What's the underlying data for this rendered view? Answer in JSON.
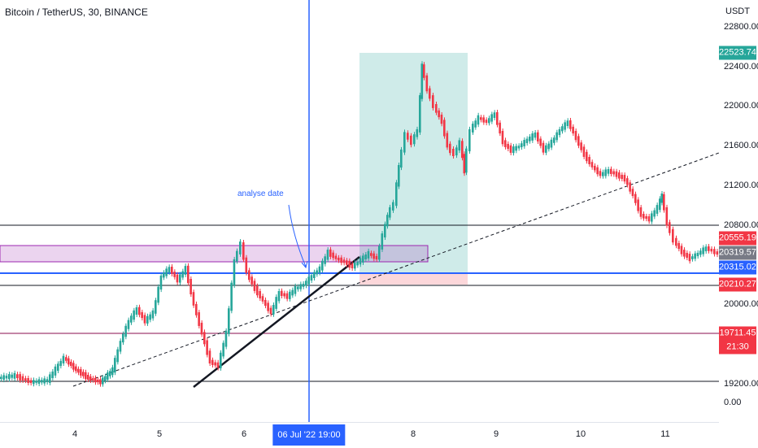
{
  "header": {
    "symbol": "Bitcoin / TetherUS, 30, BINANCE"
  },
  "price_axis": {
    "currency": "USDT",
    "ticks": [
      "22800.00",
      "22400.00",
      "22000.00",
      "21600.00",
      "21200.00",
      "20800.00",
      "20000.00",
      "19200.00",
      "0.00"
    ]
  },
  "price_tags": [
    {
      "label": "22523.74",
      "color": "#26a69a"
    },
    {
      "label": "20555.19",
      "color": "#f23645"
    },
    {
      "label": "20319.57",
      "color": "#787b86"
    },
    {
      "label": "20315.02",
      "color": "#2962ff"
    },
    {
      "label": "20210.27",
      "color": "#f23645"
    },
    {
      "label": "19711.45",
      "color": "#f23645"
    },
    {
      "label": "21:30",
      "color": "#f23645"
    }
  ],
  "time_axis": {
    "labels": [
      "4",
      "5",
      "6",
      "8",
      "9",
      "10",
      "11"
    ],
    "crosshair_label": "06 Jul '22   19:00"
  },
  "annotation": {
    "text": "analyse date"
  },
  "colors": {
    "up": "#26a69a",
    "down": "#f23645",
    "crosshair": "#2962ff",
    "rect_purple": "#9c27b0",
    "profit_zone": "#26a69a",
    "loss_zone": "#f23645"
  }
}
